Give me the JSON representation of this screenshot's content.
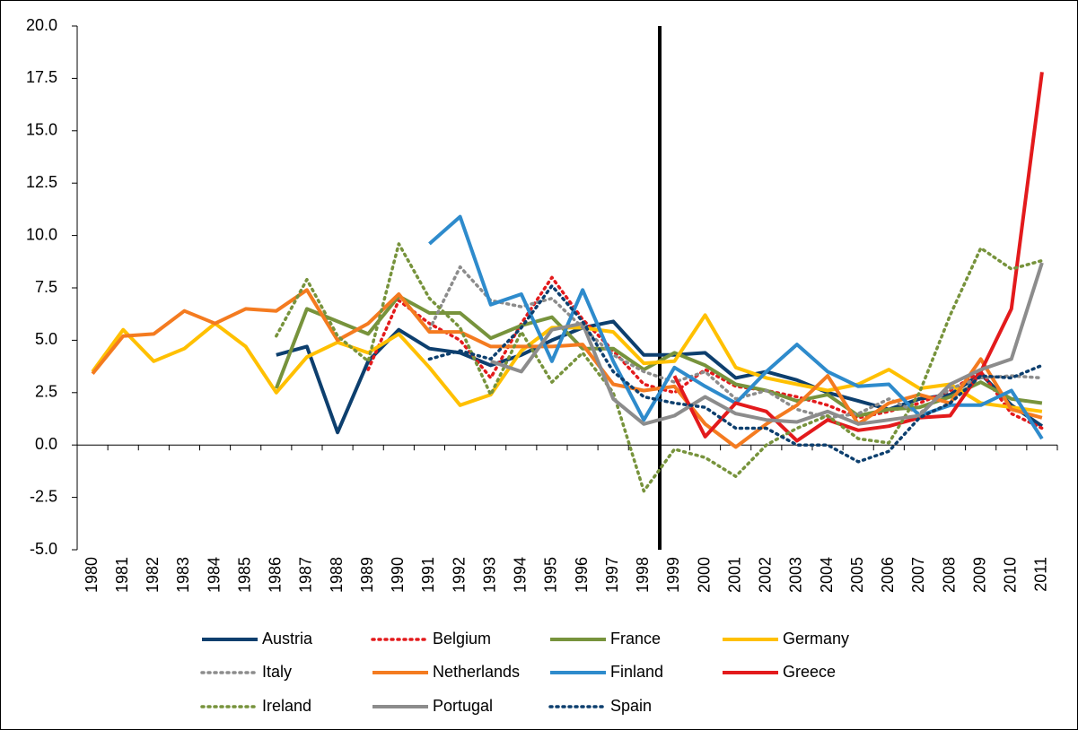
{
  "chart_data": {
    "type": "line",
    "categories": [
      "1980",
      "1981",
      "1982",
      "1983",
      "1984",
      "1985",
      "1986",
      "1987",
      "1988",
      "1989",
      "1990",
      "1991",
      "1992",
      "1993",
      "1994",
      "1995",
      "1996",
      "1997",
      "1998",
      "1999",
      "2000",
      "2001",
      "2002",
      "2003",
      "2004",
      "2005",
      "2006",
      "2007",
      "2008",
      "2009",
      "2010",
      "2011"
    ],
    "ylim": [
      -5,
      20
    ],
    "yticks": [
      {
        "value": -5,
        "label": "-5.0"
      },
      {
        "value": -2.5,
        "label": "-2.5"
      },
      {
        "value": 0,
        "label": "0.0"
      },
      {
        "value": 2.5,
        "label": "2.5"
      },
      {
        "value": 5,
        "label": "5.0"
      },
      {
        "value": 7.5,
        "label": "7.5"
      },
      {
        "value": 10,
        "label": "10.0"
      },
      {
        "value": 12.5,
        "label": "12.5"
      },
      {
        "value": 15,
        "label": "15.0"
      },
      {
        "value": 17.5,
        "label": "17.5"
      },
      {
        "value": 20,
        "label": "20.0"
      }
    ],
    "grid": false,
    "legend": "bottom",
    "series": [
      {
        "name": "Austria",
        "color": "#0d3f6e",
        "style": "solid",
        "values": [
          null,
          null,
          null,
          null,
          null,
          null,
          4.3,
          4.7,
          0.6,
          4.0,
          5.5,
          4.6,
          4.4,
          3.8,
          4.3,
          5.0,
          5.6,
          5.9,
          4.3,
          4.3,
          4.4,
          3.2,
          3.5,
          3.1,
          2.5,
          2.1,
          1.7,
          2.2,
          2.4,
          3.4,
          1.9,
          0.9
        ]
      },
      {
        "name": "Belgium",
        "color": "#e31a1c",
        "style": "dotted",
        "values": [
          null,
          null,
          null,
          null,
          null,
          null,
          null,
          null,
          null,
          3.6,
          6.9,
          5.8,
          5.0,
          3.2,
          5.8,
          8.0,
          6.0,
          4.5,
          2.9,
          2.5,
          3.6,
          2.8,
          2.6,
          2.3,
          1.9,
          1.3,
          1.6,
          2.0,
          2.6,
          3.5,
          1.5,
          0.8
        ]
      },
      {
        "name": "France",
        "color": "#77933c",
        "style": "solid",
        "values": [
          null,
          null,
          null,
          null,
          null,
          null,
          2.7,
          6.5,
          5.9,
          5.3,
          7.1,
          6.3,
          6.3,
          5.1,
          5.7,
          6.1,
          4.6,
          4.6,
          3.6,
          4.4,
          3.8,
          2.9,
          2.6,
          2.1,
          2.4,
          1.4,
          1.7,
          1.8,
          2.3,
          3.0,
          2.2,
          2.0
        ]
      },
      {
        "name": "Germany",
        "color": "#ffc000",
        "style": "solid",
        "values": [
          3.5,
          5.5,
          4.0,
          4.6,
          5.8,
          4.7,
          2.5,
          4.2,
          4.9,
          4.4,
          5.3,
          3.7,
          1.9,
          2.4,
          4.5,
          5.6,
          5.6,
          5.4,
          3.9,
          4.0,
          6.2,
          3.7,
          3.2,
          2.9,
          2.6,
          2.9,
          3.6,
          2.7,
          2.9,
          2.0,
          1.8,
          1.6
        ]
      },
      {
        "name": "Italy",
        "color": "#8c8c8c",
        "style": "dotted",
        "values": [
          null,
          null,
          null,
          null,
          null,
          null,
          null,
          null,
          null,
          null,
          null,
          5.5,
          8.5,
          6.9,
          6.6,
          7.0,
          5.6,
          4.3,
          3.5,
          3.0,
          3.5,
          2.2,
          2.6,
          1.7,
          1.3,
          1.5,
          2.2,
          1.5,
          2.7,
          3.2,
          3.3,
          3.2
        ]
      },
      {
        "name": "Netherlands",
        "color": "#f47b20",
        "style": "solid",
        "values": [
          3.4,
          5.2,
          5.3,
          6.4,
          5.8,
          6.5,
          6.4,
          7.4,
          5.0,
          5.8,
          7.2,
          5.4,
          5.4,
          4.7,
          4.7,
          4.7,
          4.8,
          2.9,
          2.6,
          2.8,
          1.0,
          -0.1,
          1.0,
          1.9,
          3.3,
          1.0,
          2.0,
          2.4,
          2.0,
          4.1,
          1.7,
          1.3
        ]
      },
      {
        "name": "Finland",
        "color": "#2e8bcc",
        "style": "solid",
        "values": [
          null,
          null,
          null,
          null,
          null,
          null,
          null,
          null,
          null,
          null,
          null,
          9.6,
          10.9,
          6.7,
          7.2,
          4.0,
          7.4,
          4.0,
          1.2,
          3.7,
          2.8,
          2.0,
          3.5,
          4.8,
          3.5,
          2.8,
          2.9,
          1.4,
          1.9,
          1.9,
          2.6,
          0.3
        ]
      },
      {
        "name": "Greece",
        "color": "#e31a1c",
        "style": "solid",
        "values": [
          null,
          null,
          null,
          null,
          null,
          null,
          null,
          null,
          null,
          null,
          null,
          null,
          null,
          null,
          null,
          null,
          null,
          null,
          null,
          3.3,
          0.4,
          2.0,
          1.6,
          0.2,
          1.2,
          0.7,
          0.9,
          1.3,
          1.4,
          3.5,
          6.5,
          17.8
        ]
      },
      {
        "name": "Ireland",
        "color": "#77933c",
        "style": "dotted",
        "values": [
          null,
          null,
          null,
          null,
          null,
          null,
          5.2,
          7.9,
          5.2,
          4.0,
          9.6,
          7.0,
          5.6,
          2.4,
          5.4,
          3.0,
          4.4,
          2.5,
          -2.2,
          -0.2,
          -0.6,
          -1.5,
          0.0,
          0.8,
          1.4,
          0.3,
          0.1,
          2.5,
          6.2,
          9.4,
          8.4,
          8.8
        ]
      },
      {
        "name": "Portugal",
        "color": "#8c8c8c",
        "style": "solid",
        "values": [
          null,
          null,
          null,
          null,
          null,
          null,
          null,
          null,
          null,
          null,
          null,
          null,
          null,
          4.0,
          3.5,
          5.5,
          5.8,
          2.2,
          1.0,
          1.4,
          2.3,
          1.5,
          1.2,
          1.1,
          1.6,
          1.0,
          1.2,
          1.4,
          2.9,
          3.6,
          4.1,
          8.7
        ]
      },
      {
        "name": "Spain",
        "color": "#0d3f6e",
        "style": "dotted",
        "values": [
          null,
          null,
          null,
          null,
          null,
          null,
          null,
          null,
          null,
          null,
          null,
          4.1,
          4.5,
          4.1,
          5.6,
          7.6,
          5.9,
          3.5,
          2.3,
          2.0,
          1.8,
          0.8,
          0.8,
          0.0,
          0.0,
          -0.8,
          -0.3,
          1.3,
          2.0,
          3.3,
          3.2,
          3.8
        ]
      }
    ]
  }
}
